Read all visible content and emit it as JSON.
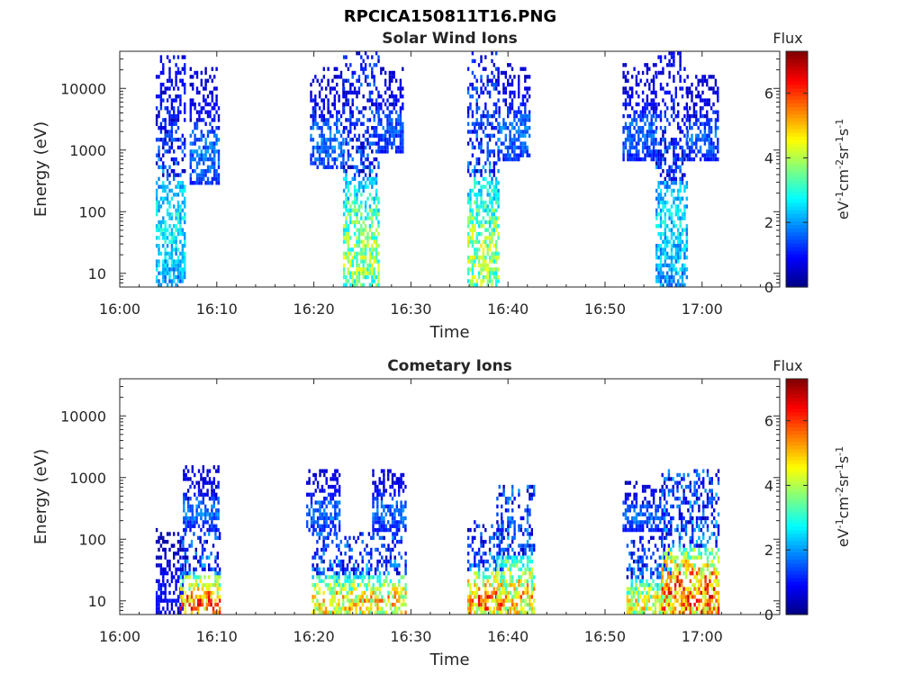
{
  "page_title": "RPCICA150811T16.PNG",
  "chart_data": [
    {
      "type": "heatmap",
      "title": "Solar Wind Ions",
      "xlabel": "Time",
      "ylabel": "Energy (eV)",
      "x_unit": "minutes after 16:00",
      "xlim": [
        0,
        68
      ],
      "ylim": [
        6,
        40000
      ],
      "yscale": "log",
      "xticks": [
        0,
        10,
        20,
        30,
        40,
        50,
        60
      ],
      "xtick_labels": [
        "16:00",
        "16:10",
        "16:20",
        "16:30",
        "16:40",
        "16:50",
        "17:00"
      ],
      "yticks": [
        10,
        100,
        1000,
        10000
      ],
      "ytick_labels": [
        "10",
        "100",
        "1000",
        "10000"
      ],
      "colorbar": {
        "label": "Flux",
        "unit_label": "eV-1cm-2sr-1s-1",
        "range": [
          0,
          7.3
        ],
        "ticks": [
          0,
          2,
          4,
          6
        ],
        "colormap": "jet"
      },
      "bursts": [
        {
          "t_start": 3.7,
          "t_end": 6.6,
          "e_min": 6,
          "e_max": 30000,
          "peak_flux": 3.3
        },
        {
          "t_start": 7.2,
          "t_end": 10.2,
          "e_min": 300,
          "e_max": 20000,
          "peak_flux": 2.2
        },
        {
          "t_start": 19.6,
          "t_end": 23.0,
          "e_min": 500,
          "e_max": 20000,
          "peak_flux": 2.2
        },
        {
          "t_start": 23.0,
          "t_end": 26.6,
          "e_min": 6,
          "e_max": 40000,
          "peak_flux": 4.8
        },
        {
          "t_start": 26.6,
          "t_end": 29.2,
          "e_min": 1000,
          "e_max": 20000,
          "peak_flux": 2.0
        },
        {
          "t_start": 35.8,
          "t_end": 39.0,
          "e_min": 6,
          "e_max": 40000,
          "peak_flux": 4.9
        },
        {
          "t_start": 39.0,
          "t_end": 42.2,
          "e_min": 700,
          "e_max": 25000,
          "peak_flux": 2.2
        },
        {
          "t_start": 51.8,
          "t_end": 55.2,
          "e_min": 700,
          "e_max": 25000,
          "peak_flux": 2.0
        },
        {
          "t_start": 55.2,
          "t_end": 58.4,
          "e_min": 6,
          "e_max": 35000,
          "peak_flux": 3.2
        },
        {
          "t_start": 58.4,
          "t_end": 61.6,
          "e_min": 700,
          "e_max": 15000,
          "peak_flux": 2.0
        }
      ]
    },
    {
      "type": "heatmap",
      "title": "Cometary Ions",
      "xlabel": "Time",
      "ylabel": "Energy (eV)",
      "x_unit": "minutes after 16:00",
      "xlim": [
        0,
        68
      ],
      "ylim": [
        6,
        40000
      ],
      "yscale": "log",
      "xticks": [
        0,
        10,
        20,
        30,
        40,
        50,
        60
      ],
      "xtick_labels": [
        "16:00",
        "16:10",
        "16:20",
        "16:30",
        "16:40",
        "16:50",
        "17:00"
      ],
      "yticks": [
        10,
        100,
        1000,
        10000
      ],
      "ytick_labels": [
        "10",
        "100",
        "1000",
        "10000"
      ],
      "colorbar": {
        "label": "Flux",
        "unit_label": "eV-1cm-2sr-1s-1",
        "range": [
          0,
          7.3
        ],
        "ticks": [
          0,
          2,
          4,
          6
        ],
        "colormap": "jet"
      },
      "bursts": [
        {
          "t_start": 3.7,
          "t_end": 6.5,
          "e_min": 6,
          "e_max": 150,
          "peak_flux": 1.2
        },
        {
          "t_start": 6.5,
          "t_end": 10.2,
          "e_min": 150,
          "e_max": 1500,
          "peak_flux": 2.2
        },
        {
          "t_start": 6.2,
          "t_end": 10.2,
          "e_min": 6,
          "e_max": 120,
          "peak_flux": 7.0
        },
        {
          "t_start": 19.2,
          "t_end": 22.6,
          "e_min": 150,
          "e_max": 1300,
          "peak_flux": 2.2
        },
        {
          "t_start": 19.8,
          "t_end": 29.4,
          "e_min": 6,
          "e_max": 120,
          "peak_flux": 6.0
        },
        {
          "t_start": 26.0,
          "t_end": 29.4,
          "e_min": 150,
          "e_max": 1300,
          "peak_flux": 2.2
        },
        {
          "t_start": 35.8,
          "t_end": 39.4,
          "e_min": 6,
          "e_max": 200,
          "peak_flux": 6.8
        },
        {
          "t_start": 38.8,
          "t_end": 42.6,
          "e_min": 6,
          "e_max": 700,
          "peak_flux": 6.0
        },
        {
          "t_start": 51.8,
          "t_end": 55.6,
          "e_min": 150,
          "e_max": 800,
          "peak_flux": 2.2
        },
        {
          "t_start": 52.2,
          "t_end": 56.8,
          "e_min": 6,
          "e_max": 100,
          "peak_flux": 5.6
        },
        {
          "t_start": 55.8,
          "t_end": 61.6,
          "e_min": 6,
          "e_max": 1300,
          "peak_flux": 7.0
        }
      ]
    }
  ]
}
